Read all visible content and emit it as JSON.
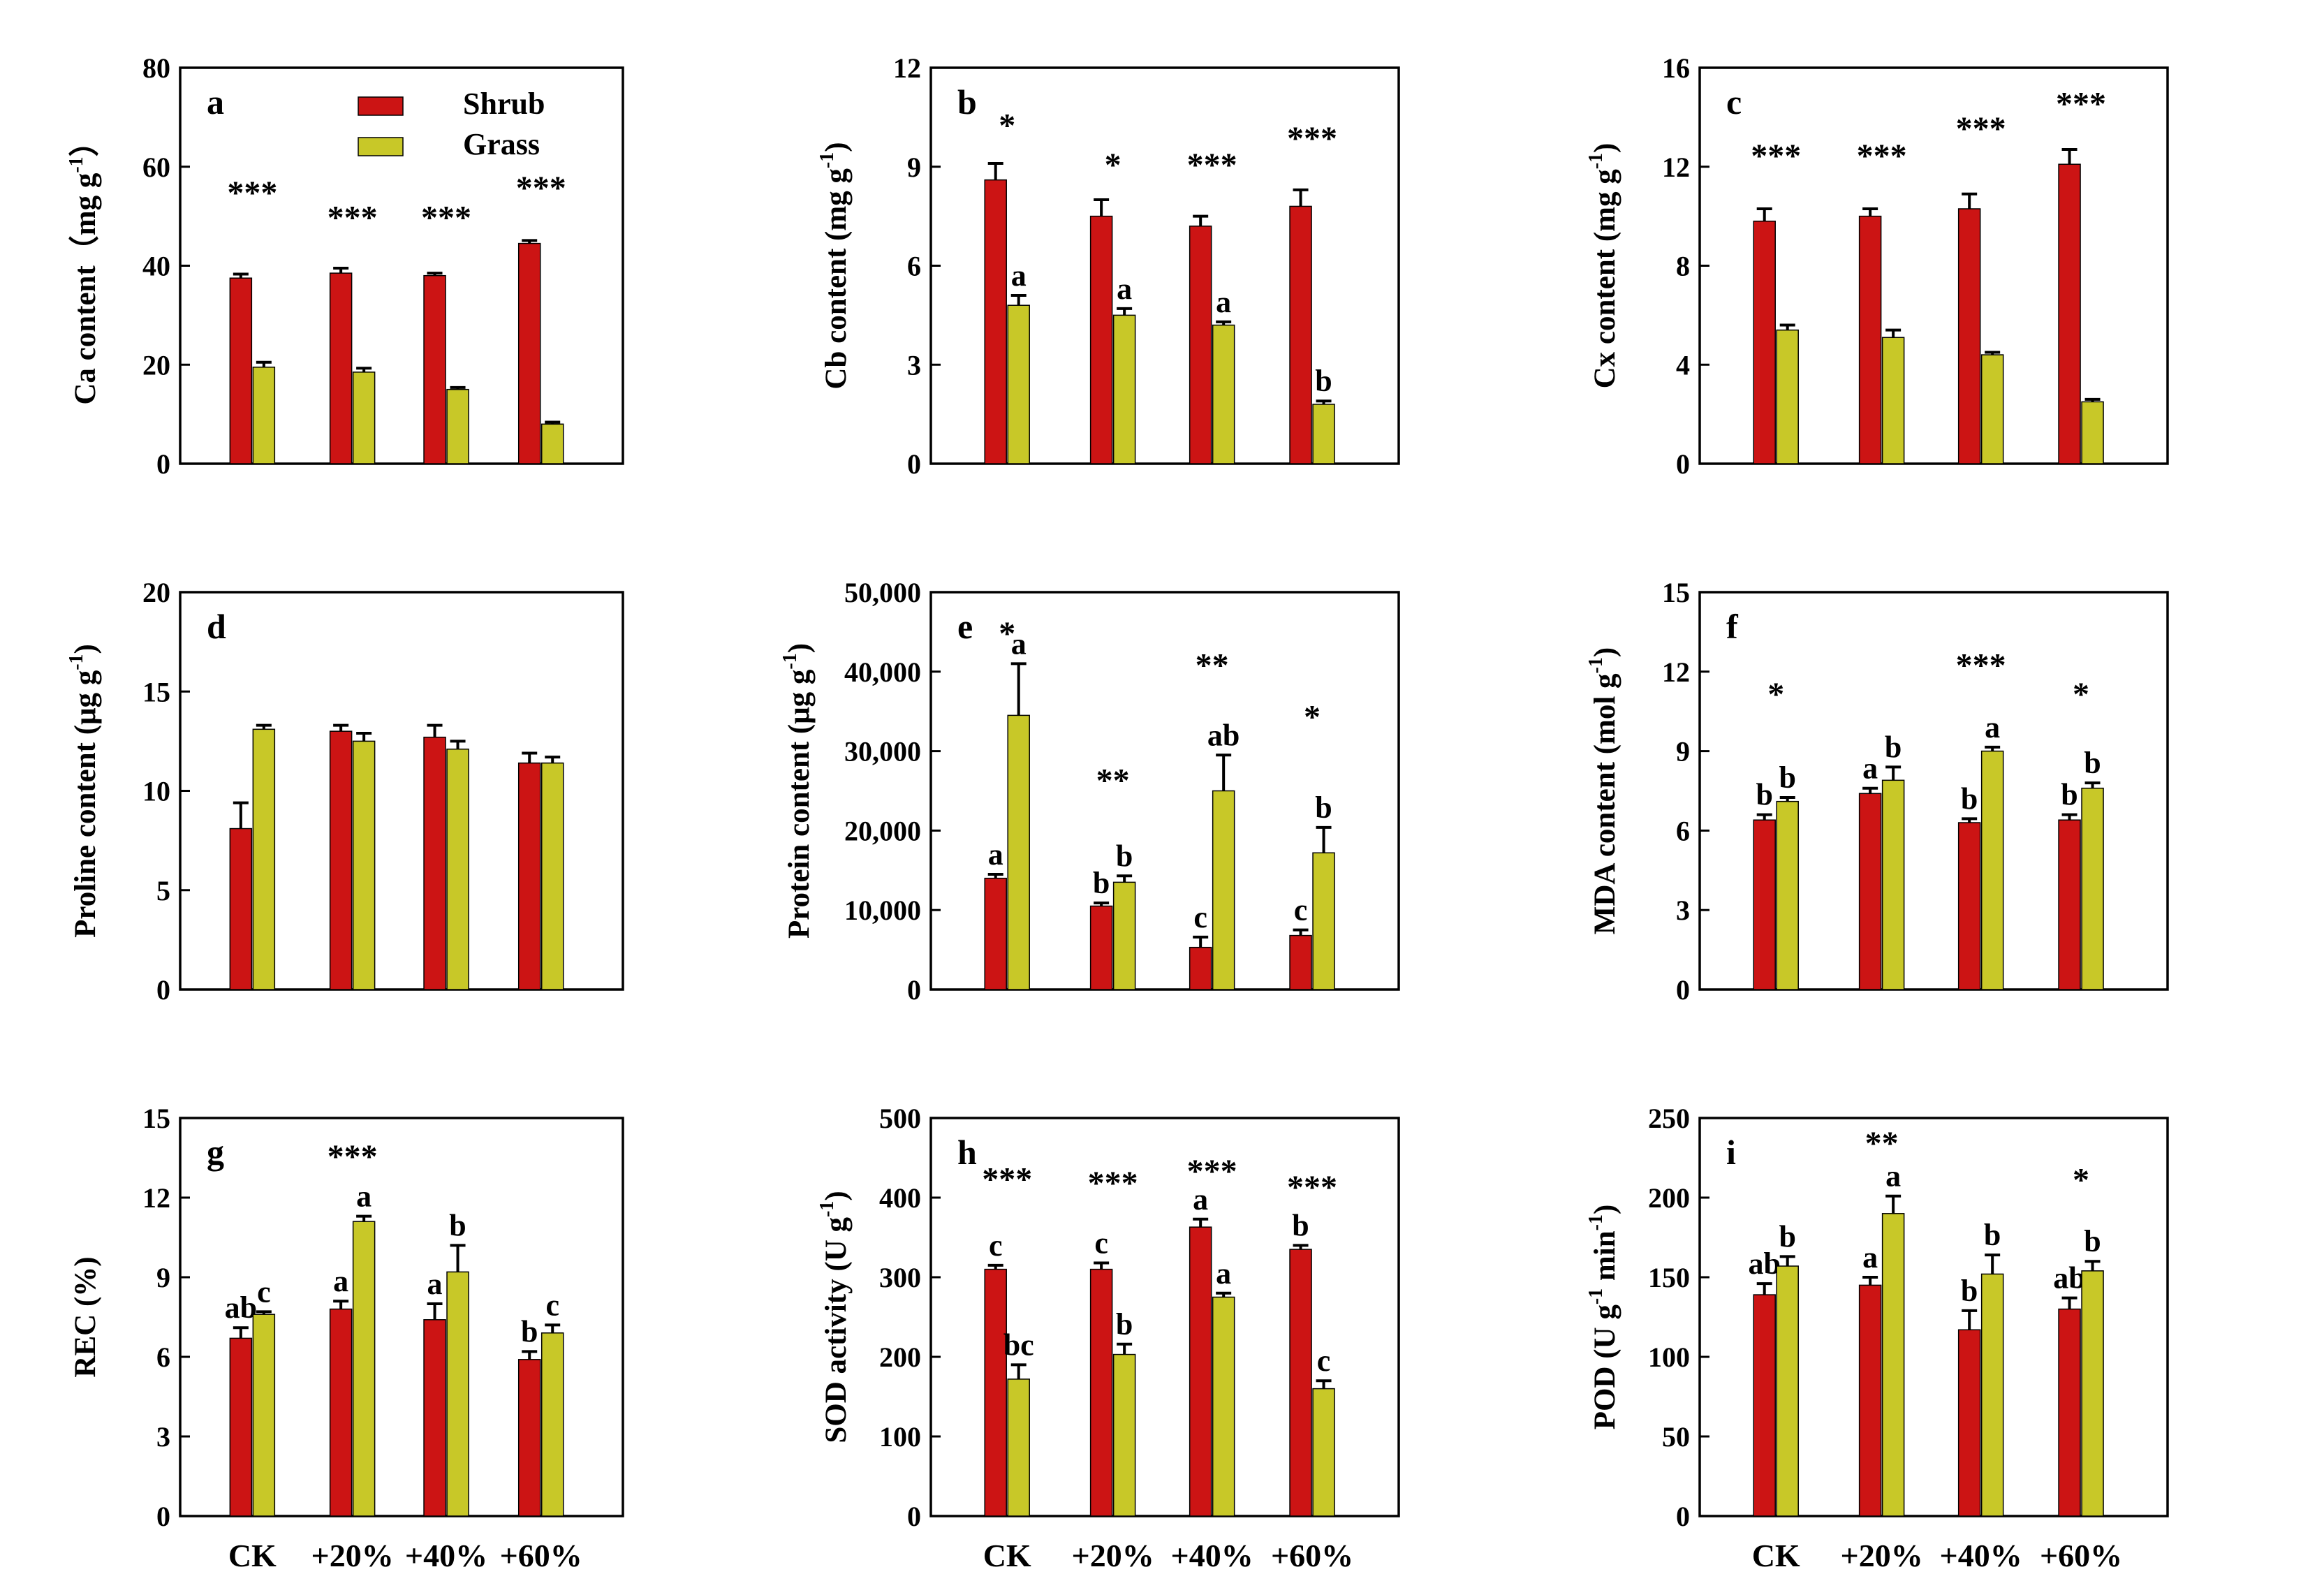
{
  "legend": {
    "shrub": "Shrub",
    "grass": "Grass"
  },
  "colors": {
    "shrub": "#cc1414",
    "grass": "#c8c828",
    "axis": "#000000"
  },
  "chart_data": [
    {
      "id": "a",
      "type": "bar",
      "panel_label": "a",
      "ylabel_main": "Ca content（mg g",
      "ylabel_sup": "-1",
      "ylabel_tail": "）",
      "ylim": [
        0,
        80
      ],
      "yticks": [
        0,
        20,
        40,
        60,
        80
      ],
      "ytick_labels": [
        "0",
        "20",
        "40",
        "60",
        "80"
      ],
      "categories": [
        "CK",
        "+20%",
        "+40%",
        "+60%"
      ],
      "show_categories": false,
      "series": [
        {
          "name": "Shrub",
          "values": [
            37.5,
            38.5,
            38,
            44.5
          ],
          "errors": [
            0.8,
            1.0,
            0.5,
            0.6
          ],
          "letters": [
            "",
            "",
            "",
            ""
          ]
        },
        {
          "name": "Grass",
          "values": [
            19.5,
            18.5,
            15,
            8
          ],
          "errors": [
            1.0,
            0.8,
            0.4,
            0.4
          ],
          "letters": [
            "",
            "",
            "",
            ""
          ]
        }
      ],
      "significance": [
        "***",
        "***",
        "***",
        "***"
      ],
      "significance_values": [
        55,
        50,
        50,
        56
      ],
      "legend": true
    },
    {
      "id": "b",
      "type": "bar",
      "panel_label": "b",
      "ylabel_main": "Cb content (mg g",
      "ylabel_sup": "-1",
      "ylabel_tail": ")",
      "ylim": [
        0,
        12
      ],
      "yticks": [
        0,
        3,
        6,
        9,
        12
      ],
      "ytick_labels": [
        "0",
        "3",
        "6",
        "9",
        "12"
      ],
      "categories": [
        "CK",
        "+20%",
        "+40%",
        "+60%"
      ],
      "show_categories": false,
      "series": [
        {
          "name": "Shrub",
          "values": [
            8.6,
            7.5,
            7.2,
            7.8
          ],
          "errors": [
            0.5,
            0.5,
            0.3,
            0.5
          ],
          "letters": [
            "",
            "",
            "",
            ""
          ]
        },
        {
          "name": "Grass",
          "values": [
            4.8,
            4.5,
            4.2,
            1.8
          ],
          "errors": [
            0.3,
            0.2,
            0.1,
            0.1
          ],
          "letters": [
            "a",
            "a",
            "a",
            "b"
          ]
        }
      ],
      "significance": [
        "*",
        "*",
        "***",
        "***"
      ],
      "significance_values": [
        10.3,
        9.1,
        9.1,
        9.9
      ],
      "legend": false
    },
    {
      "id": "c",
      "type": "bar",
      "panel_label": "c",
      "ylabel_main": "Cx content (mg g",
      "ylabel_sup": "-1",
      "ylabel_tail": ")",
      "ylim": [
        0,
        16
      ],
      "yticks": [
        0,
        4,
        8,
        12,
        16
      ],
      "ytick_labels": [
        "0",
        "4",
        "8",
        "12",
        "16"
      ],
      "categories": [
        "CK",
        "+20%",
        "+40%",
        "+60%"
      ],
      "show_categories": false,
      "series": [
        {
          "name": "Shrub",
          "values": [
            9.8,
            10.0,
            10.3,
            12.1
          ],
          "errors": [
            0.5,
            0.3,
            0.6,
            0.6
          ],
          "letters": [
            "",
            "",
            "",
            ""
          ]
        },
        {
          "name": "Grass",
          "values": [
            5.4,
            5.1,
            4.4,
            2.5
          ],
          "errors": [
            0.2,
            0.3,
            0.1,
            0.1
          ],
          "letters": [
            "",
            "",
            "",
            ""
          ]
        }
      ],
      "significance": [
        "***",
        "***",
        "***",
        "***"
      ],
      "significance_values": [
        12.5,
        12.5,
        13.6,
        14.6
      ],
      "legend": false
    },
    {
      "id": "d",
      "type": "bar",
      "panel_label": "d",
      "ylabel_main": "Proline content (μg g",
      "ylabel_sup": "-1",
      "ylabel_tail": ")",
      "ylim": [
        0,
        20
      ],
      "yticks": [
        0,
        5,
        10,
        15,
        20
      ],
      "ytick_labels": [
        "0",
        "5",
        "10",
        "15",
        "20"
      ],
      "categories": [
        "CK",
        "+20%",
        "+40%",
        "+60%"
      ],
      "show_categories": false,
      "series": [
        {
          "name": "Shrub",
          "values": [
            8.1,
            13.0,
            12.7,
            11.4
          ],
          "errors": [
            1.3,
            0.3,
            0.6,
            0.5
          ],
          "letters": [
            "",
            "",
            "",
            ""
          ]
        },
        {
          "name": "Grass",
          "values": [
            13.1,
            12.5,
            12.1,
            11.4
          ],
          "errors": [
            0.2,
            0.4,
            0.4,
            0.3
          ],
          "letters": [
            "",
            "",
            "",
            ""
          ]
        }
      ],
      "significance": [
        "",
        "",
        "",
        ""
      ],
      "significance_values": [
        0,
        0,
        0,
        0
      ],
      "legend": false
    },
    {
      "id": "e",
      "type": "bar",
      "panel_label": "e",
      "ylabel_main": "Protein content (μg g",
      "ylabel_sup": "-1",
      "ylabel_tail": ")",
      "ylim": [
        0,
        50000
      ],
      "yticks": [
        0,
        10000,
        20000,
        30000,
        40000,
        50000
      ],
      "ytick_labels": [
        "0",
        "10,000",
        "20,000",
        "30,000",
        "40,000",
        "50,000"
      ],
      "categories": [
        "CK",
        "+20%",
        "+40%",
        "+60%"
      ],
      "show_categories": false,
      "series": [
        {
          "name": "Shrub",
          "values": [
            14000,
            10500,
            5300,
            6800
          ],
          "errors": [
            500,
            400,
            1300,
            700
          ],
          "letters": [
            "a",
            "b",
            "c",
            "c"
          ]
        },
        {
          "name": "Grass",
          "values": [
            34500,
            13500,
            25000,
            17200
          ],
          "errors": [
            6500,
            800,
            4500,
            3200
          ],
          "letters": [
            "a",
            "b",
            "ab",
            "b"
          ]
        }
      ],
      "significance": [
        "*",
        "**",
        "**",
        "*"
      ],
      "significance_values": [
        45000,
        26500,
        41000,
        34500
      ],
      "legend": false
    },
    {
      "id": "f",
      "type": "bar",
      "panel_label": "f",
      "ylabel_main": "MDA content (mol g",
      "ylabel_sup": "-1",
      "ylabel_tail": ")",
      "ylim": [
        0,
        15
      ],
      "yticks": [
        0,
        3,
        6,
        9,
        12,
        15
      ],
      "ytick_labels": [
        "0",
        "3",
        "6",
        "9",
        "12",
        "15"
      ],
      "categories": [
        "CK",
        "+20%",
        "+40%",
        "+60%"
      ],
      "show_categories": false,
      "series": [
        {
          "name": "Shrub",
          "values": [
            6.4,
            7.4,
            6.3,
            6.4
          ],
          "errors": [
            0.2,
            0.2,
            0.15,
            0.2
          ],
          "letters": [
            "b",
            "a",
            "b",
            "b"
          ]
        },
        {
          "name": "Grass",
          "values": [
            7.1,
            7.9,
            9.0,
            7.6
          ],
          "errors": [
            0.15,
            0.5,
            0.15,
            0.2
          ],
          "letters": [
            "b",
            "b",
            "a",
            "b"
          ]
        }
      ],
      "significance": [
        "*",
        "",
        "***",
        "*"
      ],
      "significance_values": [
        11.2,
        0,
        12.3,
        11.2
      ],
      "legend": false
    },
    {
      "id": "g",
      "type": "bar",
      "panel_label": "g",
      "ylabel_main": "REC (%)",
      "ylabel_sup": "",
      "ylabel_tail": "",
      "ylim": [
        0,
        15
      ],
      "yticks": [
        0,
        3,
        6,
        9,
        12,
        15
      ],
      "ytick_labels": [
        "0",
        "3",
        "6",
        "9",
        "12",
        "15"
      ],
      "categories": [
        "CK",
        "+20%",
        "+40%",
        "+60%"
      ],
      "show_categories": true,
      "series": [
        {
          "name": "Shrub",
          "values": [
            6.7,
            7.8,
            7.4,
            5.9
          ],
          "errors": [
            0.4,
            0.3,
            0.6,
            0.3
          ],
          "letters": [
            "ab",
            "a",
            "a",
            "b"
          ]
        },
        {
          "name": "Grass",
          "values": [
            7.6,
            11.1,
            9.2,
            6.9
          ],
          "errors": [
            0.1,
            0.2,
            1.0,
            0.3
          ],
          "letters": [
            "c",
            "a",
            "b",
            "c"
          ]
        }
      ],
      "significance": [
        "",
        "***",
        "",
        ""
      ],
      "significance_values": [
        0,
        13.6,
        0,
        0
      ],
      "legend": false
    },
    {
      "id": "h",
      "type": "bar",
      "panel_label": "h",
      "ylabel_main": "SOD activity (U g",
      "ylabel_sup": "-1",
      "ylabel_tail": ")",
      "ylim": [
        0,
        500
      ],
      "yticks": [
        0,
        100,
        200,
        300,
        400,
        500
      ],
      "ytick_labels": [
        "0",
        "100",
        "200",
        "300",
        "400",
        "500"
      ],
      "categories": [
        "CK",
        "+20%",
        "+40%",
        "+60%"
      ],
      "show_categories": true,
      "series": [
        {
          "name": "Shrub",
          "values": [
            310,
            310,
            363,
            335
          ],
          "errors": [
            5,
            8,
            10,
            5
          ],
          "letters": [
            "c",
            "c",
            "a",
            "b"
          ]
        },
        {
          "name": "Grass",
          "values": [
            172,
            203,
            275,
            160
          ],
          "errors": [
            18,
            13,
            5,
            10
          ],
          "letters": [
            "bc",
            "b",
            "a",
            "c"
          ]
        }
      ],
      "significance": [
        "***",
        "***",
        "***",
        "***"
      ],
      "significance_values": [
        425,
        420,
        435,
        415
      ],
      "legend": false
    },
    {
      "id": "i",
      "type": "bar",
      "panel_label": "i",
      "ylabel_main": "POD (U g",
      "ylabel_sup": "-1",
      "ylabel_mid": " min",
      "ylabel_sup2": "-1",
      "ylabel_tail": ")",
      "ylim": [
        0,
        250
      ],
      "yticks": [
        0,
        50,
        100,
        150,
        200,
        250
      ],
      "ytick_labels": [
        "0",
        "50",
        "100",
        "150",
        "200",
        "250"
      ],
      "categories": [
        "CK",
        "+20%",
        "+40%",
        "+60%"
      ],
      "show_categories": true,
      "series": [
        {
          "name": "Shrub",
          "values": [
            139,
            145,
            117,
            130
          ],
          "errors": [
            7,
            5,
            12,
            7
          ],
          "letters": [
            "ab",
            "a",
            "b",
            "ab"
          ]
        },
        {
          "name": "Grass",
          "values": [
            157,
            190,
            152,
            154
          ],
          "errors": [
            6,
            11,
            12,
            6
          ],
          "letters": [
            "b",
            "a",
            "b",
            "b"
          ]
        }
      ],
      "significance": [
        "",
        "**",
        "",
        "*"
      ],
      "significance_values": [
        0,
        235,
        0,
        212
      ],
      "legend": false
    }
  ]
}
